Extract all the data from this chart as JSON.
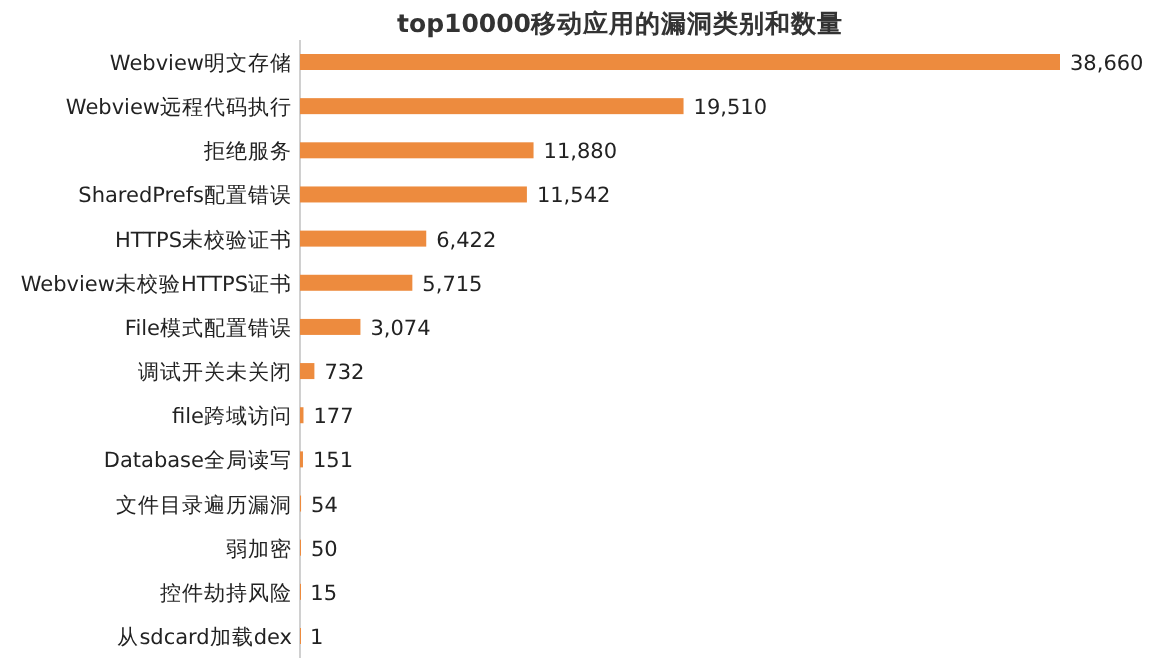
{
  "chart_data": {
    "type": "bar",
    "orientation": "horizontal",
    "title": "top10000移动应用的漏洞类别和数量",
    "categories": [
      "Webview明文存储",
      "Webview远程代码执行",
      "拒绝服务",
      "SharedPrefs配置错误",
      "HTTPS未校验证书",
      "Webview未校验HTTPS证书",
      "File模式配置错误",
      "调试开关未关闭",
      "file跨域访问",
      "Database全局读写",
      "文件目录遍历漏洞",
      "弱加密",
      "控件劫持风险",
      "从sdcard加载dex"
    ],
    "values": [
      38660,
      19510,
      11880,
      11542,
      6422,
      5715,
      3074,
      732,
      177,
      151,
      54,
      50,
      15,
      1
    ],
    "value_labels": [
      "38,660",
      "19,510",
      "11,880",
      "11,542",
      "6,422",
      "5,715",
      "3,074",
      "732",
      "177",
      "151",
      "54",
      "50",
      "15",
      "1"
    ],
    "color": "#ed8b3e"
  }
}
